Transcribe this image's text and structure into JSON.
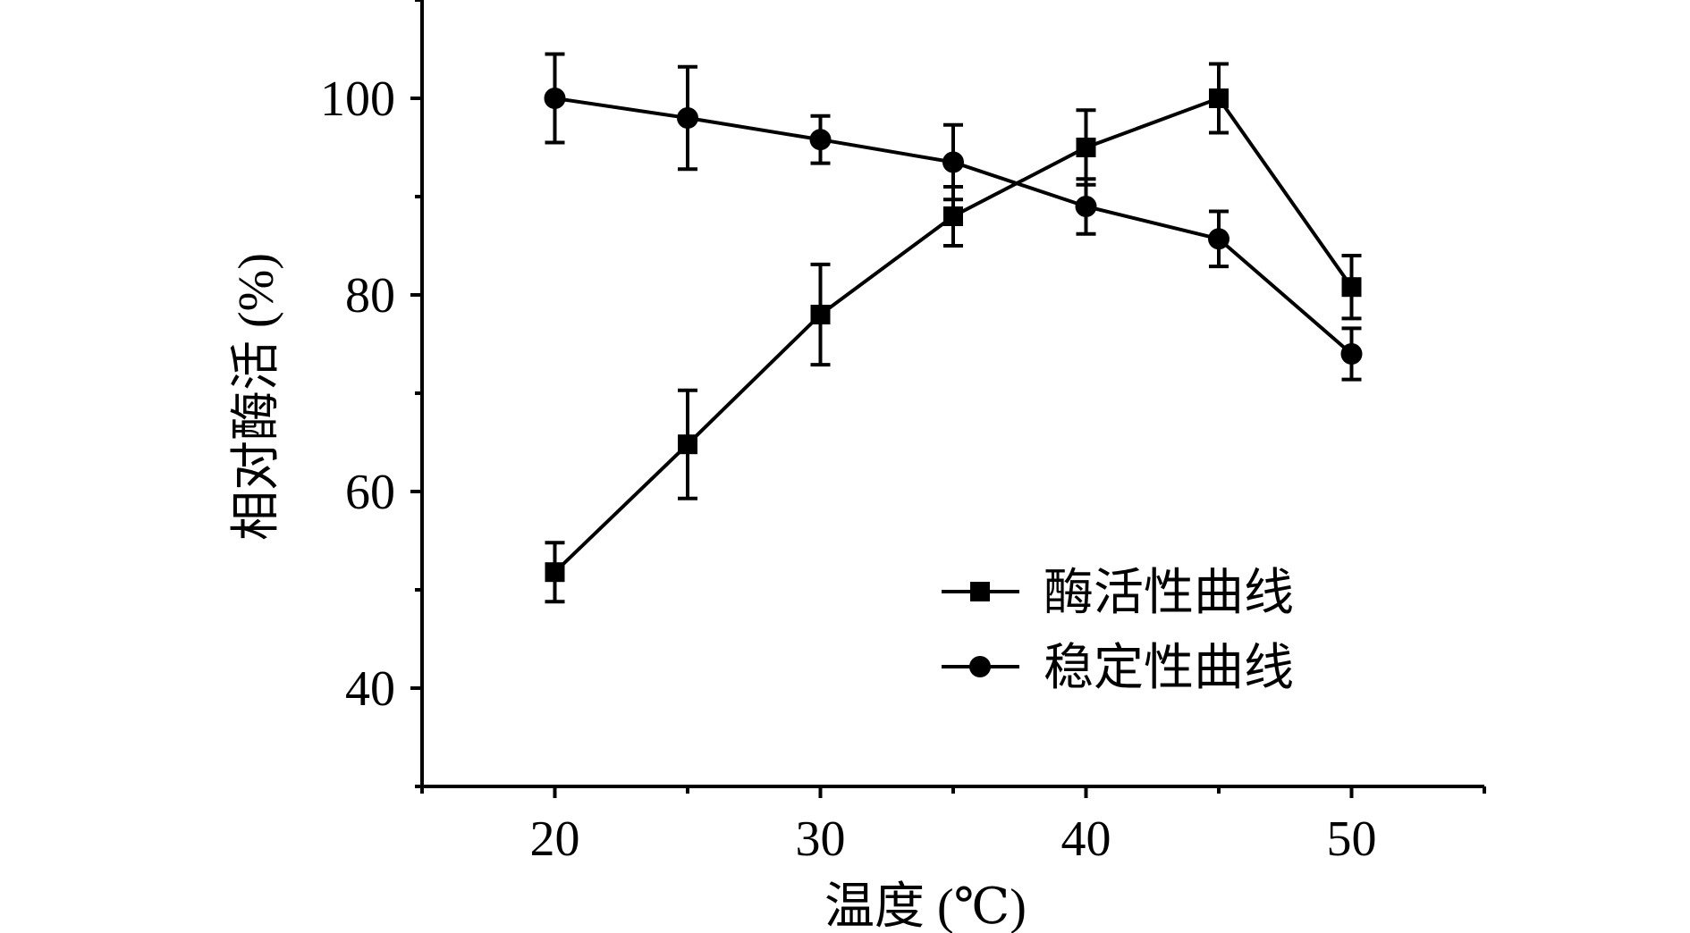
{
  "chart_data": {
    "type": "line",
    "xlabel": "温度 (℃)",
    "ylabel": "相对酶活 (%)",
    "xlim": [
      15,
      55
    ],
    "ylim": [
      30,
      110
    ],
    "xticks": [
      20,
      30,
      40,
      50
    ],
    "xtick_labels": [
      "20",
      "30",
      "40",
      "50"
    ],
    "yticks": [
      40,
      60,
      80,
      100
    ],
    "ytick_labels": [
      "40",
      "60",
      "80",
      "100"
    ],
    "legend_position": "lower-right",
    "grid": false,
    "x": [
      20,
      25,
      30,
      35,
      40,
      45,
      50
    ],
    "series": [
      {
        "name": "酶活性曲线",
        "marker": "square",
        "color": "#000000",
        "values": [
          51.8,
          64.8,
          78.0,
          88.0,
          95.0,
          100.0,
          80.8
        ],
        "errors": [
          3.0,
          5.5,
          5.1,
          3.0,
          3.8,
          3.5,
          3.2
        ]
      },
      {
        "name": "稳定性曲线",
        "marker": "circle",
        "color": "#000000",
        "values": [
          100.0,
          98.0,
          95.8,
          93.5,
          89.0,
          85.7,
          74.0
        ],
        "errors": [
          4.5,
          5.2,
          2.4,
          3.8,
          2.8,
          2.8,
          2.6
        ]
      }
    ]
  }
}
